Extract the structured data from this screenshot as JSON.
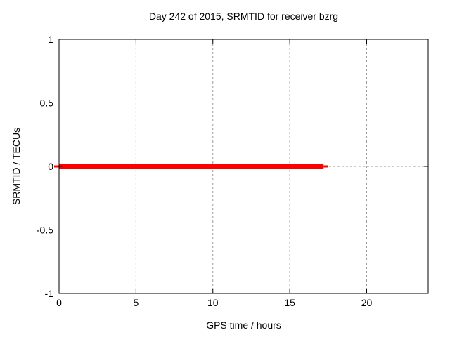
{
  "window": {
    "background": "#ffffff"
  },
  "chart_data": {
    "type": "line",
    "title": "Day 242 of 2015, SRMTID for receiver bzrg",
    "xlabel": "GPS time / hours",
    "ylabel": "SRMTID / TECUs",
    "xlim": [
      0,
      24
    ],
    "ylim": [
      -1,
      1
    ],
    "x_ticks": [
      0,
      5,
      10,
      15,
      20
    ],
    "x_tick_labels": [
      "0",
      "5",
      "10",
      "15",
      "20"
    ],
    "y_ticks": [
      -1,
      -0.5,
      0,
      0.5,
      1
    ],
    "y_tick_labels": [
      "-1",
      "-0.5",
      "0",
      "0.5",
      "1"
    ],
    "grid": true,
    "legend_position": "none",
    "series": [
      {
        "name": "SRMTID",
        "color": "#ff0000",
        "y_value": 0,
        "x_start": 0,
        "x_dense_end": 17.2,
        "x_end": 17.5
      }
    ],
    "colors": {
      "series": "#ff0000",
      "grid": "#9b9b9b",
      "border": "#000000",
      "text": "#000000"
    }
  }
}
